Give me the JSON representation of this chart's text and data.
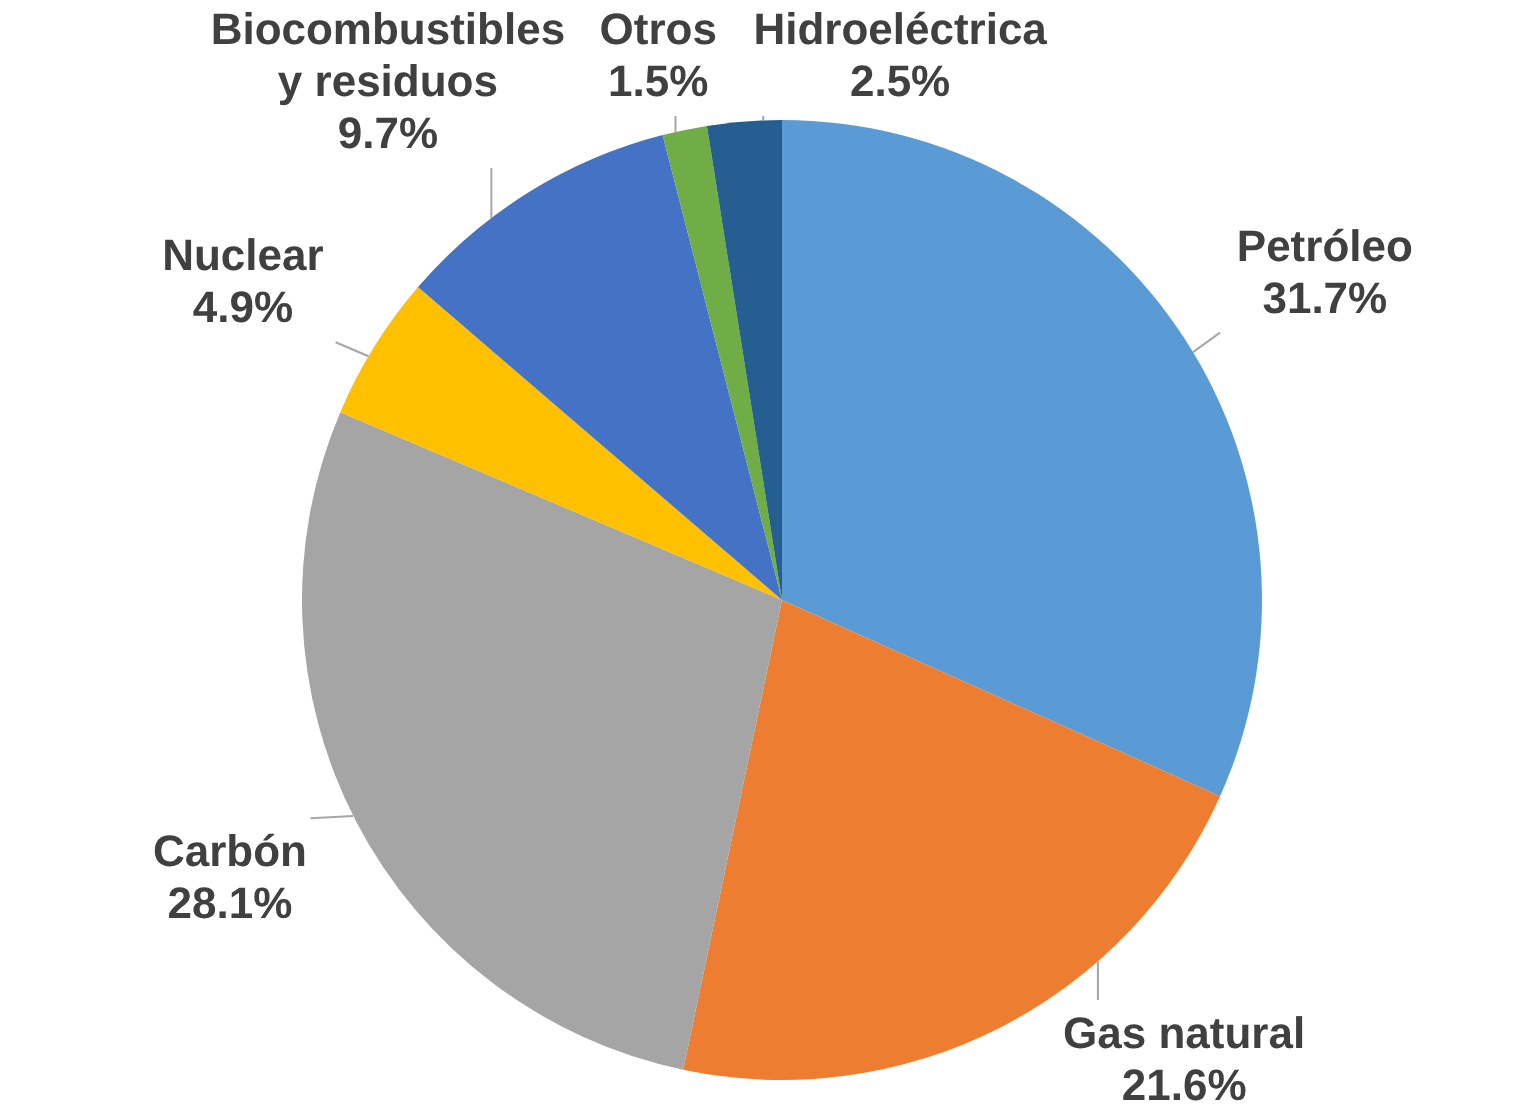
{
  "chart_data": {
    "type": "pie",
    "categories": [
      "Petróleo",
      "Gas natural",
      "Carbón",
      "Nuclear",
      "Biocombustibles y residuos",
      "Otros",
      "Hidroeléctrica"
    ],
    "values": [
      31.7,
      21.6,
      28.1,
      4.9,
      9.7,
      1.5,
      2.5
    ],
    "value_labels": [
      "31.7%",
      "21.6%",
      "28.1%",
      "4.9%",
      "9.7%",
      "1.5%",
      "2.5%"
    ],
    "colors": [
      "#5b9bd5",
      "#ed7d31",
      "#a5a5a5",
      "#ffc000",
      "#4472c4",
      "#70ad47",
      "#255e91"
    ]
  }
}
